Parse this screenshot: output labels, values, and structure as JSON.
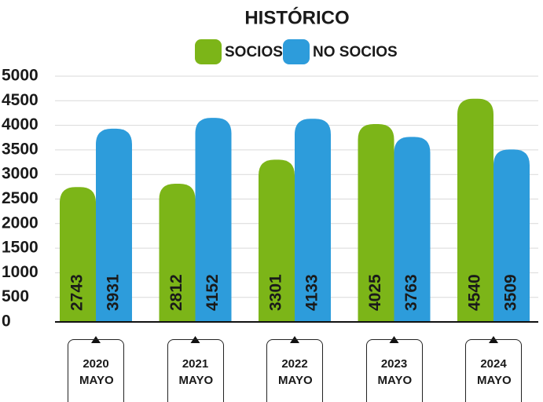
{
  "chart_data": {
    "type": "bar",
    "title": "HISTÓRICO",
    "categories": [
      "2020 MAYO",
      "2021 MAYO",
      "2022 MAYO",
      "2023 MAYO",
      "2024 MAYO"
    ],
    "series": [
      {
        "name": "SOCIOS",
        "color": "#7cb518",
        "values": [
          2743,
          2812,
          3301,
          4025,
          4540
        ]
      },
      {
        "name": "NO SOCIOS",
        "color": "#2d9cdb",
        "values": [
          3931,
          4152,
          4133,
          3763,
          3509
        ]
      }
    ],
    "ylim": [
      0,
      5000
    ],
    "yticks": [
      0,
      500,
      1000,
      1500,
      2000,
      2500,
      3000,
      3500,
      4000,
      4500,
      5000
    ],
    "grid": true,
    "legend": "top"
  }
}
